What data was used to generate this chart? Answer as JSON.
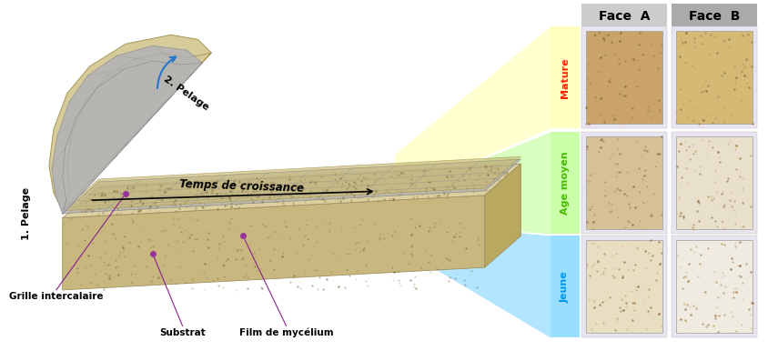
{
  "fig_width": 8.45,
  "fig_height": 3.86,
  "dpi": 100,
  "background_color": "#ffffff",
  "face_a_header_color": "#cccccc",
  "face_b_header_color": "#aaaaaa",
  "mature_label_color": "#ff2200",
  "age_moyen_label_color": "#44bb00",
  "jeune_label_color": "#0099ee",
  "zone_mature_fill": "#ffffc0",
  "zone_agemoyen_fill": "#ccffaa",
  "zone_jeune_fill": "#99ddff",
  "substrate_top": "#ddd0a0",
  "substrate_front": "#c8b880",
  "substrate_right": "#b8a860",
  "substrate_bottom": "#c0b078",
  "film_color": "#c8b870",
  "film_edge": "#a09050",
  "grid_color": "#b0b0b0",
  "grid_line_color": "#888888",
  "peel_outer_color": "#d4c890",
  "peel_inner_color": "#c0b878",
  "photo_bg": "#e8e4f0",
  "photo_mature_a": "#c8a060",
  "photo_mature_b": "#d4b870",
  "photo_mid_a": "#d4c090",
  "photo_mid_b": "#e8e0c8",
  "photo_young_a": "#e8dfc0",
  "photo_young_b": "#f0ece0",
  "arrow_color": "#2277cc",
  "annot_line_color": "#882288",
  "annot_dot_color": "#993399",
  "labels": {
    "face_a": "Face  A",
    "face_b": "Face  B",
    "mature": "Mature",
    "age_moyen": "Age moyen",
    "jeune": "Jeune",
    "grille": "Grille intercalaire",
    "substrat": "Substrat",
    "film": "Film de mycélium",
    "temps": "Temps de croissance",
    "pelage1": "1. Pelage",
    "pelage2": "2. Pelage"
  }
}
